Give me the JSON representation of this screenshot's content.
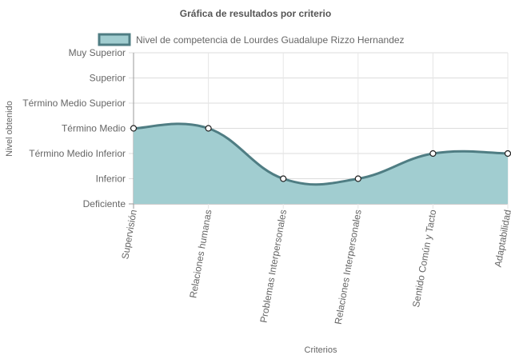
{
  "chart_data": {
    "type": "area",
    "title": "Gráfica de resultados por criterio",
    "xlabel": "Criterios",
    "ylabel": "Nivel obtenido",
    "categories": [
      "Supervisión",
      "Relaciones humanas",
      "Problemas Interpersonales",
      "Relaciones Interpersonales",
      "Sentido Común y Tacto",
      "Adaptabilidad"
    ],
    "y_levels": [
      "Deficiente",
      "Inferior",
      "Término Medio Inferior",
      "Término Medio",
      "Término Medio Superior",
      "Superior",
      "Muy Superior"
    ],
    "ylim": [
      0,
      6
    ],
    "grid": true,
    "legend_position": "top",
    "series": [
      {
        "name": "Nivel de competencia de Lourdes Guadalupe Rizzo Hernandez",
        "values": [
          3,
          3,
          1,
          1,
          2,
          2
        ],
        "line_color": "#4f7d83",
        "fill_color": "#a1cdd0"
      }
    ]
  }
}
